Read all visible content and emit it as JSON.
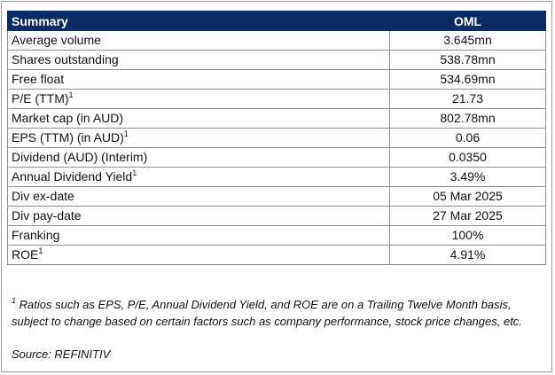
{
  "table": {
    "header": {
      "label": "Summary",
      "value": "OML"
    },
    "rows": [
      {
        "label": "Average volume",
        "sup": "",
        "value": "3.645mn"
      },
      {
        "label": "Shares outstanding",
        "sup": "",
        "value": "538.78mn"
      },
      {
        "label": "Free float",
        "sup": "",
        "value": "534.69mn"
      },
      {
        "label": "P/E (TTM)",
        "sup": "1",
        "value": "21.73"
      },
      {
        "label": "Market cap (in AUD)",
        "sup": "",
        "value": "802.78mn"
      },
      {
        "label": "EPS (TTM) (in AUD)",
        "sup": "1",
        "value": "0.06"
      },
      {
        "label": "Dividend (AUD) (Interim)",
        "sup": "",
        "value": "0.0350"
      },
      {
        "label": "Annual Dividend Yield",
        "sup": "1",
        "value": "3.49%"
      },
      {
        "label": "Div ex-date",
        "sup": "",
        "value": "05 Mar 2025"
      },
      {
        "label": "Div pay-date",
        "sup": "",
        "value": "27 Mar 2025"
      },
      {
        "label": "Franking",
        "sup": "",
        "value": "100%"
      },
      {
        "label": "ROE",
        "sup": "1",
        "value": "4.91%"
      }
    ]
  },
  "footnote": {
    "marker": "1",
    "line1": " Ratios such as EPS, P/E, Annual Dividend Yield, and ROE are on a Trailing Twelve Month basis,",
    "line2": "subject to change based on certain factors such as company performance, stock price changes, etc."
  },
  "source": "Source: REFINITIV"
}
